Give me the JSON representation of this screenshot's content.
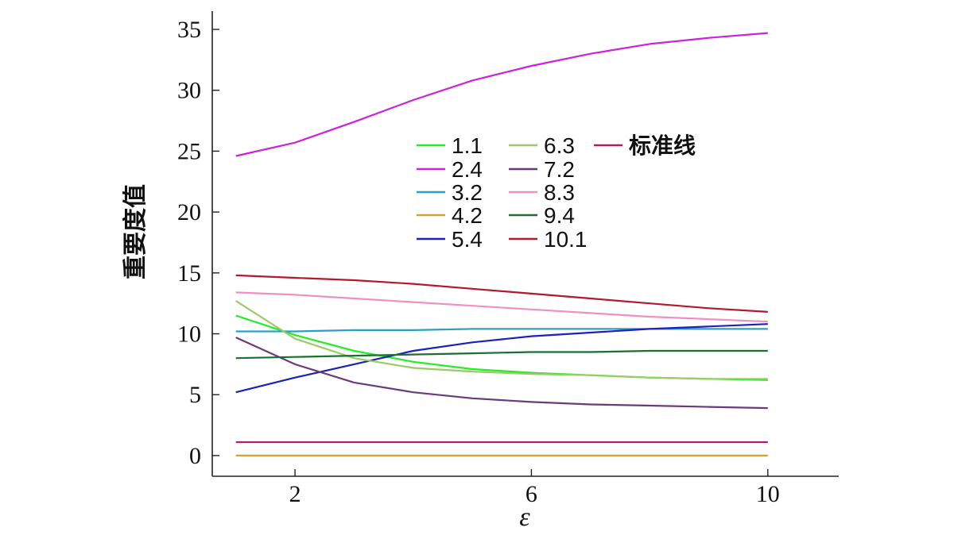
{
  "chart_data": {
    "type": "line",
    "xlabel": "ε",
    "ylabel": "重要度值",
    "xlim": [
      0.6,
      11.2
    ],
    "ylim": [
      -1.7,
      36.5
    ],
    "xticks": [
      2,
      6,
      10
    ],
    "yticks": [
      0,
      5,
      10,
      15,
      20,
      25,
      30,
      35
    ],
    "x": [
      1,
      2,
      3,
      4,
      5,
      6,
      7,
      8,
      9,
      10
    ],
    "grid": false,
    "legend_position": "top-center",
    "series": [
      {
        "name": "1.1",
        "color": "#22ee22",
        "values": [
          11.5,
          9.9,
          8.6,
          7.7,
          7.1,
          6.8,
          6.6,
          6.4,
          6.3,
          6.2
        ]
      },
      {
        "name": "2.4",
        "color": "#cc22dd",
        "values": [
          24.6,
          25.7,
          27.4,
          29.2,
          30.8,
          32.0,
          33.0,
          33.8,
          34.3,
          34.7
        ]
      },
      {
        "name": "3.2",
        "color": "#2aa0c8",
        "values": [
          10.2,
          10.2,
          10.3,
          10.3,
          10.4,
          10.4,
          10.4,
          10.4,
          10.4,
          10.4
        ]
      },
      {
        "name": "4.2",
        "color": "#d8a030",
        "values": [
          0.0,
          0.0,
          0.0,
          0.0,
          0.0,
          0.0,
          0.0,
          0.0,
          0.0,
          0.0
        ]
      },
      {
        "name": "5.4",
        "color": "#1a22bb",
        "values": [
          5.2,
          6.4,
          7.5,
          8.6,
          9.3,
          9.8,
          10.1,
          10.4,
          10.6,
          10.8
        ]
      },
      {
        "name": "6.3",
        "color": "#99cc66",
        "values": [
          12.7,
          9.6,
          8.0,
          7.2,
          6.9,
          6.7,
          6.6,
          6.4,
          6.3,
          6.3
        ]
      },
      {
        "name": "7.2",
        "color": "#6a3a7a",
        "values": [
          9.7,
          7.5,
          6.0,
          5.2,
          4.7,
          4.4,
          4.2,
          4.1,
          4.0,
          3.9
        ]
      },
      {
        "name": "8.3",
        "color": "#f090c0",
        "values": [
          13.4,
          13.2,
          12.9,
          12.6,
          12.3,
          12.0,
          11.7,
          11.4,
          11.2,
          11.0
        ]
      },
      {
        "name": "9.4",
        "color": "#1a7030",
        "values": [
          8.0,
          8.1,
          8.2,
          8.3,
          8.4,
          8.5,
          8.5,
          8.6,
          8.6,
          8.6
        ]
      },
      {
        "name": "10.1",
        "color": "#b21a2a",
        "values": [
          14.8,
          14.6,
          14.4,
          14.1,
          13.7,
          13.3,
          12.9,
          12.5,
          12.1,
          11.8
        ]
      },
      {
        "name": "标准线",
        "color": "#b01a70",
        "values": [
          1.1,
          1.1,
          1.1,
          1.1,
          1.1,
          1.1,
          1.1,
          1.1,
          1.1,
          1.1
        ]
      }
    ]
  }
}
